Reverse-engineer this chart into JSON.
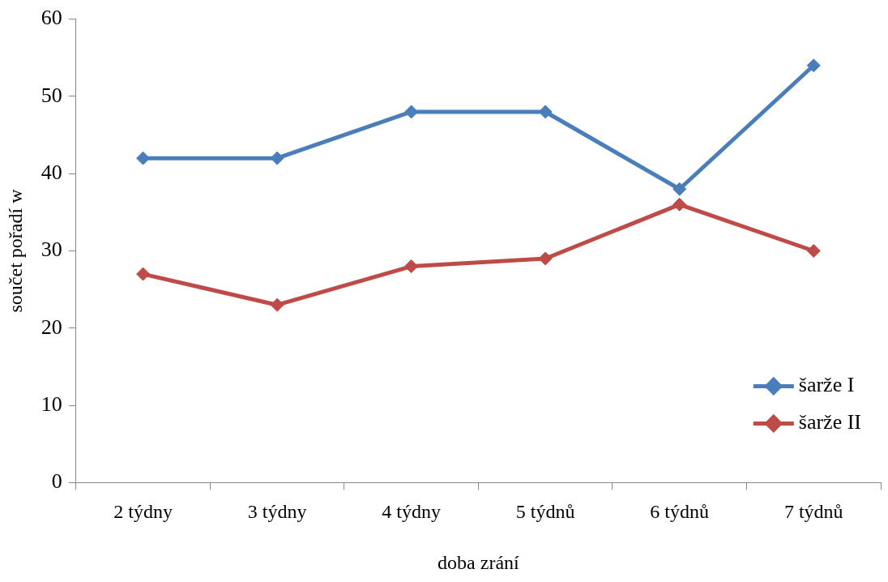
{
  "chart_data": {
    "type": "line",
    "xlabel": "doba zrání",
    "ylabel": "součet pořadí w",
    "categories": [
      "2 týdny",
      "3 týdny",
      "4 týdny",
      "5 týdnů",
      "6 týdnů",
      "7 týdnů"
    ],
    "series": [
      {
        "name": "šarže I",
        "color": "#4a7ebb",
        "values": [
          42,
          42,
          48,
          48,
          38,
          54
        ]
      },
      {
        "name": "šarže II",
        "color": "#be4b48",
        "values": [
          27,
          23,
          28,
          29,
          36,
          30
        ]
      }
    ],
    "ylim": [
      0,
      60
    ],
    "yticks": [
      0,
      10,
      20,
      30,
      40,
      50,
      60
    ],
    "grid": false,
    "legend": "bottom right",
    "marker": "diamond",
    "line_style": "solid"
  }
}
